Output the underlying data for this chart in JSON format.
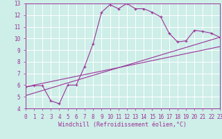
{
  "xlabel": "Windchill (Refroidissement éolien,°C)",
  "bg_color": "#ceeee8",
  "grid_color": "#ffffff",
  "line_color": "#993399",
  "xlim": [
    0,
    23
  ],
  "ylim": [
    4,
    13
  ],
  "xticks": [
    0,
    1,
    2,
    3,
    4,
    5,
    6,
    7,
    8,
    9,
    10,
    11,
    12,
    13,
    14,
    15,
    16,
    17,
    18,
    19,
    20,
    21,
    22,
    23
  ],
  "yticks": [
    4,
    5,
    6,
    7,
    8,
    9,
    10,
    11,
    12,
    13
  ],
  "curve1_x": [
    0,
    1,
    2,
    3,
    4,
    5,
    6,
    7,
    8,
    9,
    10,
    11,
    12,
    13,
    14,
    15,
    16,
    17,
    18,
    19,
    20,
    21,
    22,
    23
  ],
  "curve1_y": [
    5.85,
    5.95,
    5.95,
    4.65,
    4.4,
    6.0,
    6.0,
    7.6,
    9.55,
    12.25,
    12.9,
    12.55,
    13.0,
    12.55,
    12.55,
    12.25,
    11.85,
    10.45,
    9.7,
    9.8,
    10.7,
    10.6,
    10.45,
    10.1
  ],
  "line2_x": [
    0,
    23
  ],
  "line2_y": [
    5.85,
    9.3
  ],
  "line3_x": [
    0,
    23
  ],
  "line3_y": [
    5.1,
    10.1
  ]
}
